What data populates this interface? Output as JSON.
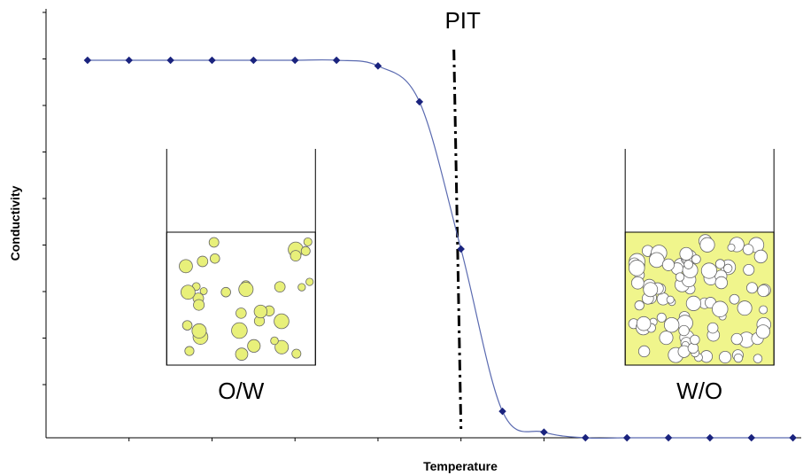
{
  "chart_data": {
    "type": "line",
    "xlabel": "Temperature",
    "ylabel": "Conductivity",
    "x": [
      0,
      1,
      2,
      3,
      4,
      5,
      6,
      7,
      8,
      9,
      10,
      11,
      12,
      13,
      14,
      15,
      16,
      17
    ],
    "series": [
      {
        "values": [
          1.0,
          1.0,
          1.0,
          1.0,
          1.0,
          1.0,
          1.0,
          0.985,
          0.89,
          0.5,
          0.07,
          0.015,
          0.0,
          0.0,
          0.0,
          0.0,
          0.0,
          0.0
        ]
      }
    ],
    "ylim": [
      0,
      1.0
    ],
    "xlim": [
      -1,
      17.2
    ],
    "grid": false,
    "legend": "none",
    "line_color": "#5a6ab0",
    "marker_color": "#1a237e",
    "threshold": {
      "label": "PIT",
      "x": 9.0
    },
    "annotations": [
      {
        "label": "O/W",
        "at_x": 3.7,
        "phase_fill": "#ffffff",
        "droplet_fill": "#e8f07a"
      },
      {
        "label": "W/O",
        "at_x": 14.75,
        "phase_fill": "#f0f58c",
        "droplet_fill": "#ffffff"
      }
    ]
  }
}
